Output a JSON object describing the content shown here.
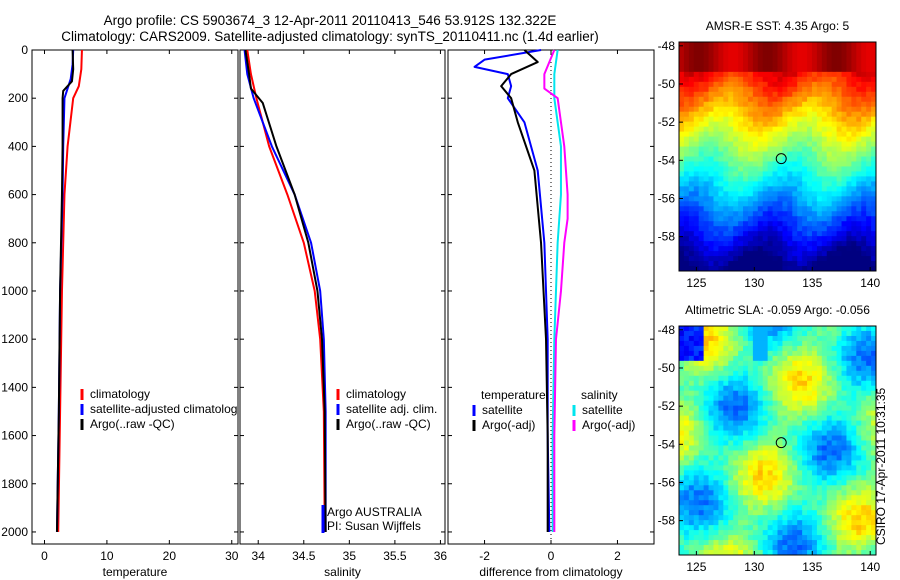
{
  "header": {
    "title_line1": "Argo profile: CS 5903674_3 12-Apr-2011 20110413_546 53.912S 132.322E",
    "title_line2": "Climatology: CARS2009. Satellite-adjusted climatology: synTS_20110411.nc (1.4d earlier)"
  },
  "side_label": "CSIRO 17-Apr-2011 10:31:35",
  "colors": {
    "red": "#ff0000",
    "blue": "#0000ff",
    "black": "#000000",
    "cyan": "#00e5ee",
    "magenta": "#ff00ff"
  },
  "chart_data": [
    {
      "type": "line",
      "id": "temperature",
      "xlabel": "temperature",
      "ylabel": "",
      "xlim": [
        -2,
        31
      ],
      "ylim": [
        2050,
        0
      ],
      "xticks": [
        "0",
        "10",
        "20",
        "30"
      ],
      "yticks": [
        "0",
        "200",
        "400",
        "600",
        "800",
        "1000",
        "1200",
        "1400",
        "1600",
        "1800",
        "2000"
      ],
      "legend": [
        "climatology",
        "satellite-adjusted climatolog",
        "Argo(..raw -QC)"
      ],
      "series": [
        {
          "name": "climatology",
          "color": "red",
          "depth": [
            0,
            80,
            150,
            200,
            400,
            600,
            1000,
            1500,
            2000
          ],
          "values": [
            6.0,
            5.9,
            5.5,
            4.6,
            3.7,
            3.2,
            2.8,
            2.5,
            2.2
          ]
        },
        {
          "name": "satellite-adjusted climatolog",
          "color": "blue",
          "depth": [
            0,
            60,
            120,
            160,
            200,
            400,
            600,
            1000,
            1500,
            2000
          ],
          "values": [
            4.6,
            4.5,
            4.2,
            3.7,
            3.2,
            3.0,
            2.9,
            2.5,
            2.3,
            2.0
          ]
        },
        {
          "name": "Argo(..raw -QC)",
          "color": "black",
          "depth": [
            0,
            80,
            130,
            170,
            200,
            400,
            600,
            1000,
            1500,
            2000
          ],
          "values": [
            4.5,
            4.6,
            4.4,
            3.0,
            2.9,
            2.9,
            2.8,
            2.5,
            2.3,
            2.0
          ]
        }
      ]
    },
    {
      "type": "line",
      "id": "salinity",
      "xlabel": "salinity",
      "ylabel": "",
      "xlim": [
        33.8,
        36.05
      ],
      "ylim": [
        2050,
        0
      ],
      "xticks": [
        "34",
        "34.5",
        "35",
        "35.5",
        "36"
      ],
      "legend": [
        "climatology",
        "satellite adj. clim.",
        "Argo(..raw -QC)"
      ],
      "annotation": [
        "Argo AUSTRALIA",
        "PI: Susan Wijffels"
      ],
      "series": [
        {
          "name": "climatology",
          "color": "red",
          "depth": [
            0,
            100,
            200,
            400,
            600,
            800,
            1000,
            1200,
            1500,
            2000
          ],
          "values": [
            33.88,
            33.92,
            33.98,
            34.12,
            34.32,
            34.5,
            34.62,
            34.68,
            34.72,
            34.73
          ]
        },
        {
          "name": "satellite adj. clim.",
          "color": "blue",
          "depth": [
            0,
            100,
            200,
            400,
            600,
            800,
            1000,
            1200,
            1500,
            2000
          ],
          "values": [
            33.85,
            33.88,
            33.95,
            34.15,
            34.4,
            34.58,
            34.68,
            34.72,
            34.74,
            34.74
          ]
        },
        {
          "name": "Argo(..raw -QC)",
          "color": "black",
          "depth": [
            0,
            100,
            160,
            220,
            400,
            600,
            800,
            1000,
            1200,
            1500,
            2000
          ],
          "values": [
            33.86,
            33.9,
            33.92,
            34.05,
            34.2,
            34.4,
            34.55,
            34.65,
            34.7,
            34.73,
            34.74
          ]
        }
      ]
    },
    {
      "type": "line",
      "id": "difference",
      "xlabel": "difference from climatology",
      "ylabel": "",
      "xlim": [
        -3.1,
        3.1
      ],
      "ylim": [
        2050,
        0
      ],
      "xticks": [
        "-2",
        "0",
        "2"
      ],
      "legend": [
        {
          "title": "temperature",
          "items": [
            "satellite",
            "Argo(-adj)"
          ]
        },
        {
          "title": "salinity",
          "items": [
            "satellite",
            "Argo(-adj)"
          ]
        }
      ],
      "series": [
        {
          "name": "temperature satellite",
          "color": "blue",
          "depth": [
            0,
            40,
            70,
            100,
            150,
            200,
            300,
            500,
            800,
            1200,
            1600,
            2000
          ],
          "values": [
            -0.3,
            -2.0,
            -2.3,
            -1.3,
            -1.2,
            -1.3,
            -0.8,
            -0.4,
            -0.2,
            -0.1,
            -0.1,
            -0.05
          ]
        },
        {
          "name": "temperature Argo(-adj)",
          "color": "black",
          "depth": [
            0,
            50,
            100,
            150,
            200,
            300,
            500,
            800,
            1200,
            1600,
            2000
          ],
          "values": [
            -0.8,
            -0.4,
            -1.2,
            -1.5,
            -1.2,
            -1.0,
            -0.5,
            -0.3,
            -0.15,
            -0.1,
            -0.1
          ]
        },
        {
          "name": "salinity satellite",
          "color": "cyan",
          "depth": [
            0,
            100,
            200,
            400,
            600,
            800,
            1000,
            1200,
            1600,
            2000
          ],
          "values": [
            0.2,
            0.1,
            0.1,
            0.3,
            0.3,
            0.2,
            0.15,
            0.1,
            0.05,
            0.05
          ]
        },
        {
          "name": "salinity Argo(-adj)",
          "color": "magenta",
          "depth": [
            0,
            100,
            160,
            200,
            400,
            600,
            700,
            800,
            1000,
            1200,
            1600,
            2000
          ],
          "values": [
            0.1,
            -0.2,
            -0.2,
            0.2,
            0.4,
            0.5,
            0.5,
            0.4,
            0.3,
            0.15,
            0.1,
            0.1
          ]
        }
      ]
    },
    {
      "type": "heatmap",
      "id": "sst-map",
      "title": "AMSR-E SST: 4.35 Argo: 5",
      "xlim": [
        123.5,
        140.5
      ],
      "ylim": [
        -59.8,
        -47.8
      ],
      "xticks": [
        "125",
        "130",
        "135",
        "140"
      ],
      "yticks": [
        "-48",
        "-50",
        "-52",
        "-54",
        "-56",
        "-58"
      ],
      "marker": [
        132.322,
        -53.912
      ]
    },
    {
      "type": "heatmap",
      "id": "sla-map",
      "title": "Altimetric SLA: -0.059 Argo: -0.056",
      "xlim": [
        123.5,
        140.5
      ],
      "ylim": [
        -59.8,
        -47.8
      ],
      "xticks": [
        "125",
        "130",
        "135",
        "140"
      ],
      "yticks": [
        "-48",
        "-50",
        "-52",
        "-54",
        "-56",
        "-58"
      ],
      "marker": [
        132.322,
        -53.912
      ]
    }
  ]
}
